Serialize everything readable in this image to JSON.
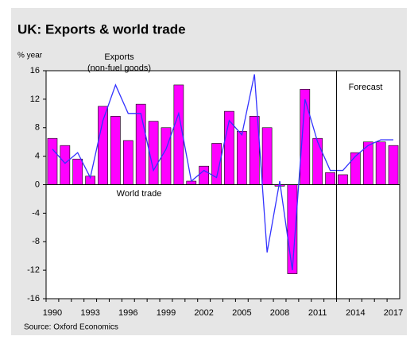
{
  "chart_data": {
    "type": "bar_line",
    "title": "UK: Exports & world trade",
    "y_label": "% year",
    "annotations": [
      "(non-fuel goods)",
      "Forecast"
    ],
    "source": "Source: Oxford Economics",
    "categories": [
      "1990",
      null,
      null,
      "1993",
      null,
      null,
      "1996",
      null,
      null,
      "1999",
      null,
      null,
      "2002",
      null,
      null,
      "2005",
      null,
      null,
      "2008",
      null,
      null,
      "2011",
      null,
      null,
      "2014",
      null,
      null,
      "2017"
    ],
    "series": [
      {
        "name": "Exports",
        "type": "bar",
        "color": "#ff00ff",
        "values": [
          6.5,
          5.5,
          3.6,
          1.2,
          11,
          9.6,
          6.2,
          11.3,
          8.9,
          8,
          14,
          0.5,
          2.6,
          5.8,
          10.3,
          7.5,
          9.6,
          8,
          -0.2,
          -12.5,
          13.4,
          6.5,
          1.7,
          1.4,
          4.5,
          6,
          6,
          5.5
        ]
      },
      {
        "name": "World trade",
        "type": "line",
        "color": "#3333ff",
        "values": [
          5,
          3,
          4.5,
          1,
          9,
          14,
          10,
          10,
          2,
          5,
          10,
          0.5,
          2,
          1,
          9,
          7,
          15.5,
          -9.5,
          0.5,
          -12,
          12,
          6,
          2,
          2,
          4,
          5.5,
          6.3,
          6.3
        ]
      }
    ],
    "ylim": [
      -16,
      16
    ],
    "yticks": [
      -16,
      -12,
      -8,
      -4,
      0,
      4,
      8,
      12,
      16
    ]
  }
}
